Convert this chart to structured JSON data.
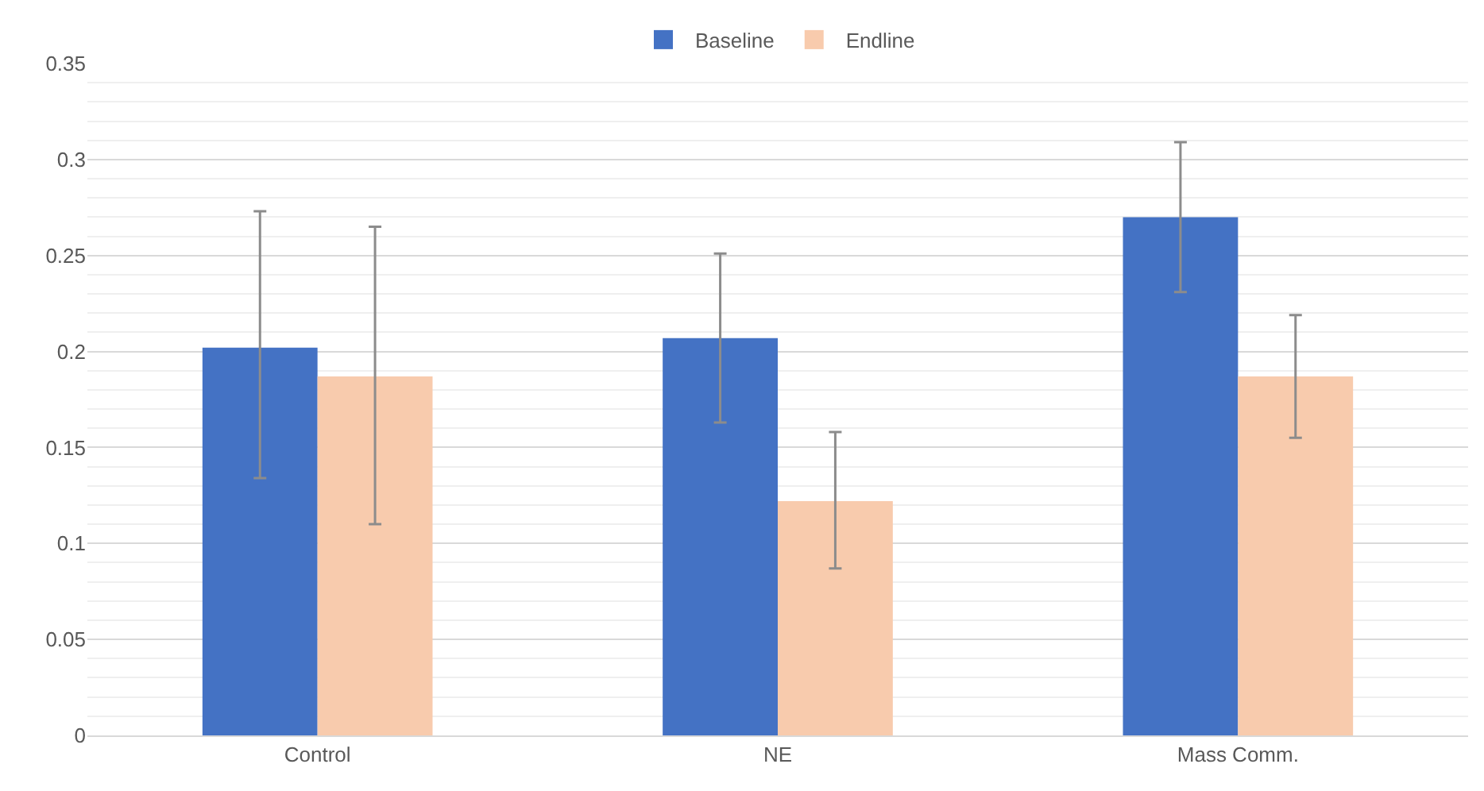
{
  "chart_data": {
    "type": "bar",
    "categories": [
      "Control",
      "NE",
      "Mass Comm."
    ],
    "series": [
      {
        "name": "Baseline",
        "color": "#4472c4",
        "values": [
          0.202,
          0.207,
          0.27
        ],
        "errors": [
          [
            0.134,
            0.273
          ],
          [
            0.163,
            0.251
          ],
          [
            0.231,
            0.309
          ]
        ]
      },
      {
        "name": "Endline",
        "color": "#f8cbad",
        "values": [
          0.187,
          0.122,
          0.187
        ],
        "errors": [
          [
            0.11,
            0.265
          ],
          [
            0.087,
            0.158
          ],
          [
            0.155,
            0.219
          ]
        ]
      }
    ],
    "ylim": [
      0,
      0.35
    ],
    "yticks": [
      0,
      0.05,
      0.1,
      0.15,
      0.2,
      0.25,
      0.3,
      0.35
    ],
    "grid": "y",
    "legend": "top"
  }
}
